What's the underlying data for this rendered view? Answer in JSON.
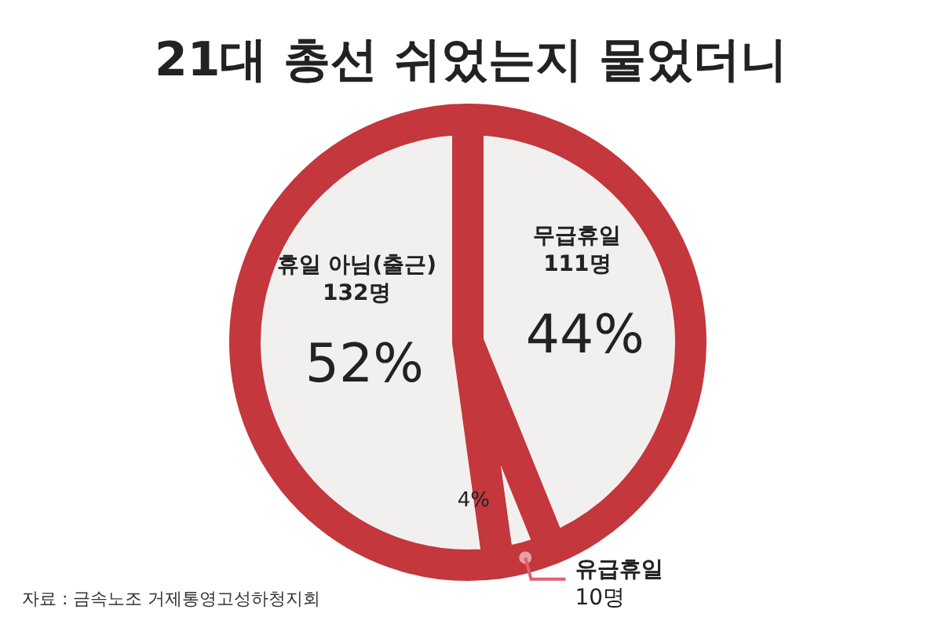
{
  "chart_data": {
    "type": "pie",
    "title": "21대 총선 쉬었는지 물었더니",
    "categories": [
      "무급휴일",
      "유급휴일",
      "휴일 아님(출근)"
    ],
    "values": [
      111,
      10,
      132
    ],
    "value_labels": [
      "111명",
      "10명",
      "132명"
    ],
    "colors": [
      "#c3373d",
      "#c3373d",
      "#c3373d"
    ],
    "annotations": [
      {
        "text": "44%",
        "x": "무급휴일"
      },
      {
        "text": "4%",
        "x": "유급휴일"
      },
      {
        "text": "52%",
        "x": "휴일 아님(출근)"
      },
      "자료 : 금속노조 거제통영고성하청지회"
    ]
  }
}
